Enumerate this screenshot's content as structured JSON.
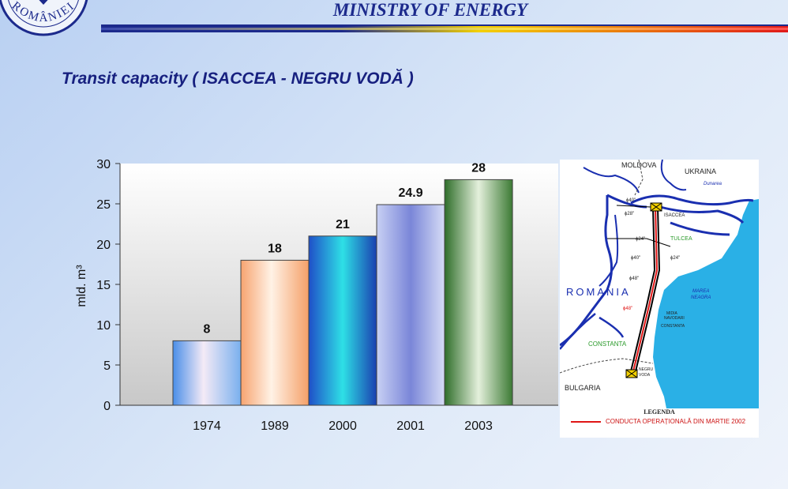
{
  "header": {
    "title": "MINISTRY OF ENERGY",
    "seal_text": "ROMÂNIEI"
  },
  "subtitle": "Transit capacity ( ISACCEA - NEGRU VODĂ )",
  "chart_data": {
    "type": "bar",
    "categories": [
      "1974",
      "1989",
      "2000",
      "2001",
      "2003"
    ],
    "values": [
      8,
      18,
      21,
      24.9,
      28
    ],
    "data_labels": [
      "8",
      "18",
      "21",
      "24.9",
      "28"
    ],
    "ylabel": "mld. m³",
    "ylim": [
      0,
      30
    ],
    "yticks": [
      "0",
      "5",
      "10",
      "15",
      "20",
      "25",
      "30"
    ],
    "grid": false,
    "legend": "none"
  },
  "map": {
    "labels": {
      "moldova": "MOLDOVA",
      "ukraina": "UKRAINA",
      "dunarea": "Dunarea",
      "isaccea": "ISACCEA",
      "tulcea": "TULCEA",
      "romania": "ROMANIA",
      "marea_neagra_1": "MAREA",
      "marea_neagra_2": "NEAGRA",
      "midia": "MIDIA",
      "navodari": "NAVODARI",
      "constanta_city": "CONSTANTA",
      "constanta_region": "CONSTANTA",
      "negru_voda_1": "NEGRU",
      "negru_voda_2": "VODA",
      "bulgaria": "BULGARIA",
      "d40a": "ϕ40\"",
      "d28": "ϕ28\"",
      "d24a": "ϕ24\"",
      "d40b": "ϕ40\"",
      "d24b": "ϕ24\"",
      "d48a": "ϕ48\"",
      "d48b": "ϕ48\""
    },
    "legend_title": "LEGENDA",
    "legend_item": "CONDUCTA OPERAȚIONALĂ DIN MARTIE 2002"
  },
  "colors": {
    "title": "#1c2a8c",
    "pipeline": "#e01515",
    "sea": "#2ab0e6",
    "river": "#1a2fb0"
  }
}
